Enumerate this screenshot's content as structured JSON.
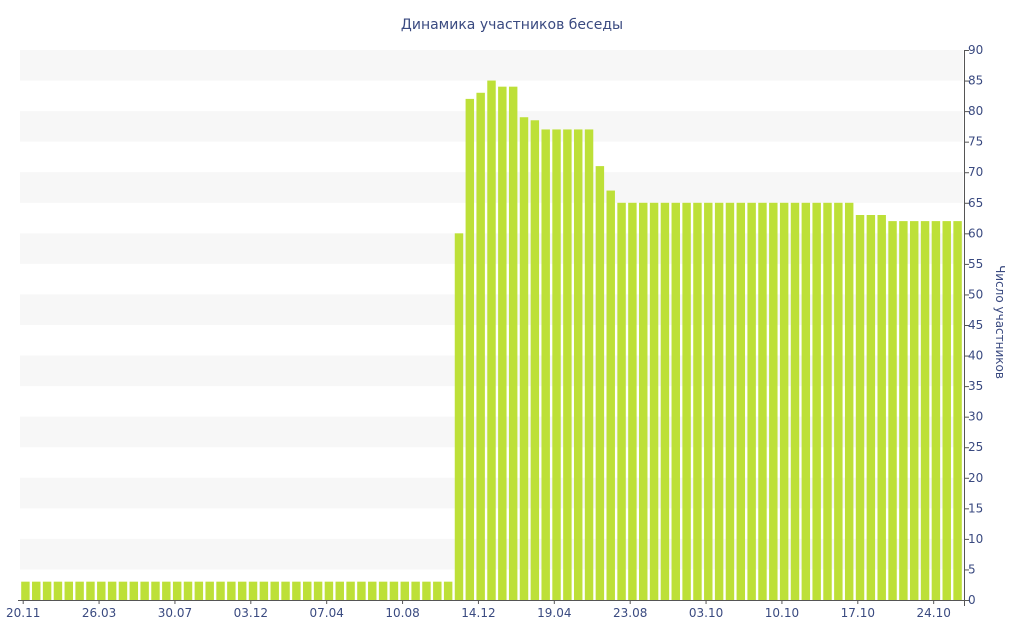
{
  "chart_data": {
    "type": "bar",
    "title": "Динамика участников беседы",
    "xlabel": "",
    "ylabel": "Число участников",
    "y_axis_position": "right",
    "ylim": [
      0,
      90
    ],
    "yticks": [
      0,
      5,
      10,
      15,
      20,
      25,
      30,
      35,
      40,
      45,
      50,
      55,
      60,
      65,
      70,
      75,
      80,
      85,
      90
    ],
    "x_tick_labels": [
      "20.11",
      "26.03",
      "30.07",
      "03.12",
      "07.04",
      "10.08",
      "14.12",
      "19.04",
      "23.08",
      "03.10",
      "10.10",
      "17.10",
      "24.10"
    ],
    "x_tick_label_at_bar": [
      0,
      7,
      14,
      21,
      28,
      35,
      42,
      49,
      56,
      63,
      70,
      77,
      84
    ],
    "values": [
      3,
      3,
      3,
      3,
      3,
      3,
      3,
      3,
      3,
      3,
      3,
      3,
      3,
      3,
      3,
      3,
      3,
      3,
      3,
      3,
      3,
      3,
      3,
      3,
      3,
      3,
      3,
      3,
      3,
      3,
      3,
      3,
      3,
      3,
      3,
      3,
      3,
      3,
      3,
      3,
      60,
      82,
      83,
      85,
      84,
      84,
      79,
      78.5,
      77,
      77,
      77,
      77,
      77,
      71,
      67,
      65,
      65,
      65,
      65,
      65,
      65,
      65,
      65,
      65,
      65,
      65,
      65,
      65,
      65,
      65,
      65,
      65,
      65,
      65,
      65,
      65,
      65,
      63,
      63,
      63,
      62,
      62,
      62,
      62,
      62,
      62,
      62
    ],
    "grid": "alternating horizontal bands",
    "legend": "none",
    "colors": {
      "bar": "#bde038",
      "band": "#f7f7f7",
      "text": "#3a4a80",
      "axis": "#555555"
    }
  }
}
